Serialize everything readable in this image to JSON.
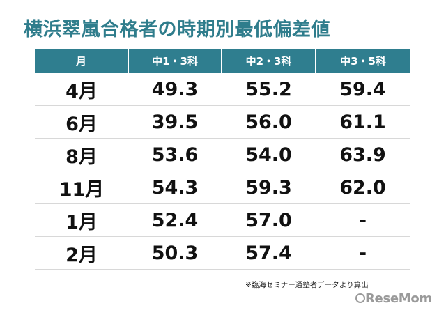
{
  "title": "横浜翠嵐合格者の時期別最低偏差値",
  "table": {
    "headers": [
      "月",
      "中1・3科",
      "中2・3科",
      "中3・5科"
    ],
    "rows": [
      [
        "4月",
        "49.3",
        "55.2",
        "59.4"
      ],
      [
        "6月",
        "39.5",
        "56.0",
        "61.1"
      ],
      [
        "8月",
        "53.6",
        "54.0",
        "63.9"
      ],
      [
        "11月",
        "54.3",
        "59.3",
        "62.0"
      ],
      [
        "1月",
        "52.4",
        "57.0",
        "-"
      ],
      [
        "2月",
        "50.3",
        "57.4",
        "-"
      ]
    ]
  },
  "note": "※臨海セミナー通塾者データより算出",
  "logo": "ReseMom",
  "colors": {
    "accent": "#2f7e8f",
    "title": "#2f7d8c"
  }
}
